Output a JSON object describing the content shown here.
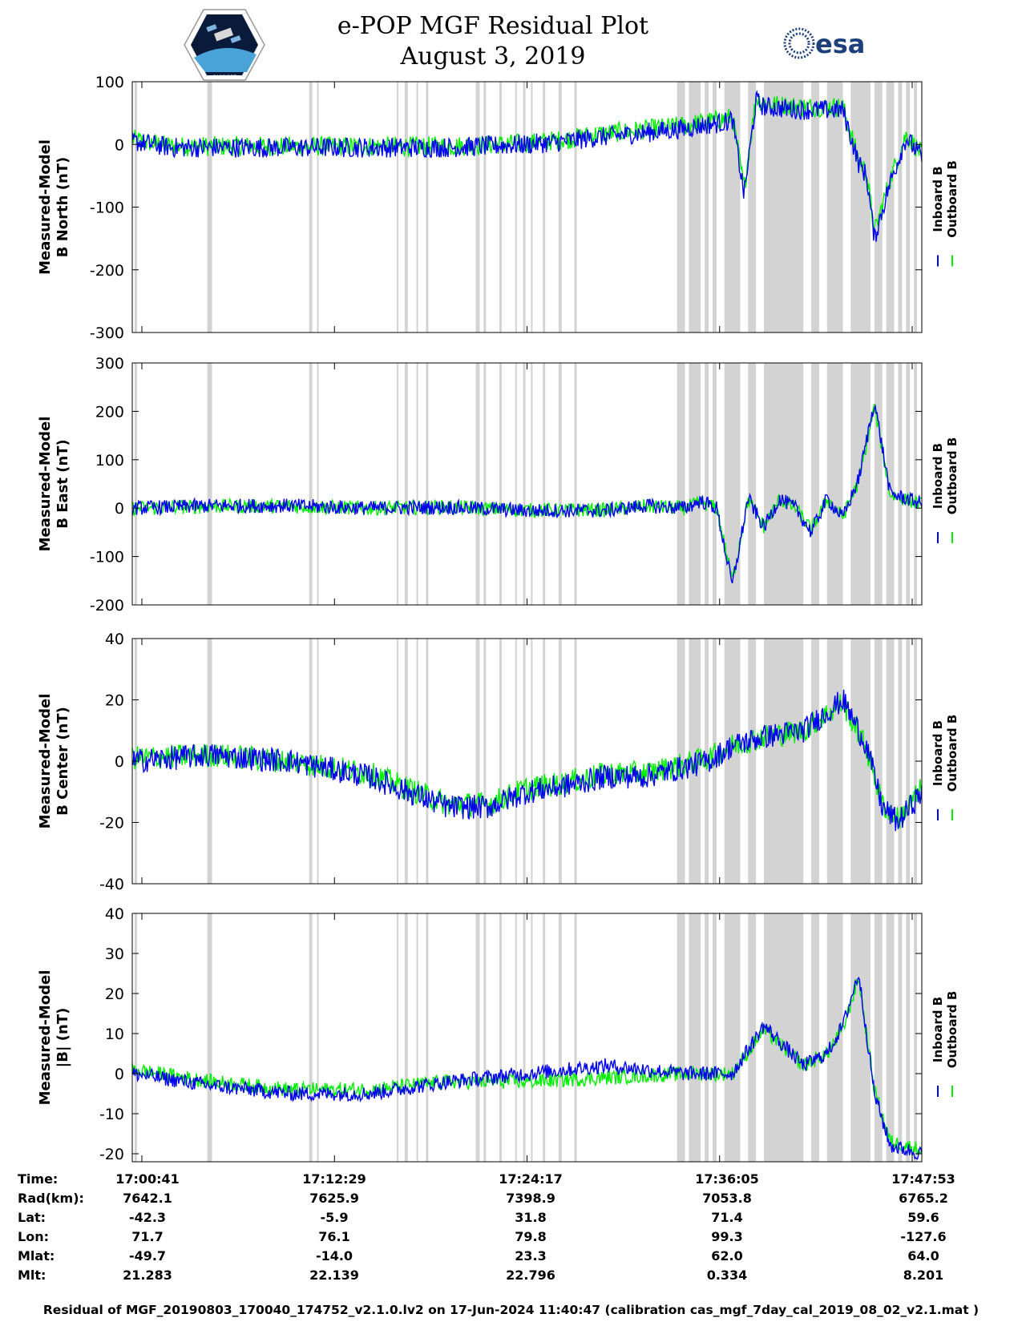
{
  "header": {
    "title_line1": "e-POP MGF Residual Plot",
    "title_line2": "August 3, 2019",
    "logo_left": "CASSIOPE",
    "logo_right": "esa"
  },
  "colors": {
    "inboard": "#0000ee",
    "outboard": "#00ee00",
    "gap": "#d3d3d3"
  },
  "chart_data": [
    {
      "type": "line",
      "ylabel": [
        "Measured-Model",
        "B North (nT)"
      ],
      "ylim": [
        -300,
        100
      ],
      "yticks": [
        100,
        0,
        -100,
        -200,
        -300
      ],
      "legend": [
        "Inboard B",
        "Outboard B"
      ],
      "series": [
        {
          "name": "Inboard B",
          "x": [
            0,
            0.05,
            0.1,
            0.2,
            0.3,
            0.4,
            0.5,
            0.55,
            0.58,
            0.62,
            0.66,
            0.7,
            0.72,
            0.75,
            0.76,
            0.775,
            0.79,
            0.8,
            0.85,
            0.9,
            0.92,
            0.93,
            0.94,
            0.96,
            0.98,
            1.0
          ],
          "values": [
            5,
            -5,
            -5,
            -5,
            -5,
            -5,
            0,
            5,
            10,
            15,
            20,
            25,
            30,
            35,
            40,
            -80,
            70,
            60,
            55,
            55,
            -30,
            -50,
            -150,
            -60,
            10,
            -20
          ]
        },
        {
          "name": "Outboard B",
          "x": [
            0,
            0.05,
            0.1,
            0.2,
            0.3,
            0.4,
            0.5,
            0.55,
            0.58,
            0.62,
            0.66,
            0.7,
            0.72,
            0.75,
            0.76,
            0.775,
            0.79,
            0.8,
            0.85,
            0.9,
            0.92,
            0.93,
            0.94,
            0.96,
            0.98,
            1.0
          ],
          "values": [
            8,
            -3,
            -3,
            -3,
            -3,
            -3,
            2,
            8,
            15,
            20,
            25,
            30,
            35,
            40,
            45,
            -70,
            75,
            65,
            60,
            60,
            -25,
            -45,
            -140,
            -55,
            15,
            -15
          ]
        }
      ]
    },
    {
      "type": "line",
      "ylabel": [
        "Measured-Model",
        "B East (nT)"
      ],
      "ylim": [
        -200,
        300
      ],
      "yticks": [
        300,
        200,
        100,
        0,
        -100,
        -200
      ],
      "legend": [
        "Inboard B",
        "Outboard B"
      ],
      "series": [
        {
          "name": "Inboard B",
          "x": [
            0,
            0.1,
            0.2,
            0.3,
            0.4,
            0.5,
            0.55,
            0.6,
            0.65,
            0.7,
            0.72,
            0.74,
            0.76,
            0.78,
            0.8,
            0.82,
            0.84,
            0.86,
            0.88,
            0.9,
            0.92,
            0.94,
            0.96,
            0.98,
            1.0
          ],
          "values": [
            0,
            5,
            5,
            0,
            2,
            -5,
            -5,
            -5,
            5,
            0,
            15,
            0,
            -160,
            20,
            -40,
            20,
            0,
            -50,
            20,
            -20,
            60,
            220,
            30,
            20,
            10
          ]
        },
        {
          "name": "Outboard B",
          "x": [
            0,
            0.1,
            0.2,
            0.3,
            0.4,
            0.5,
            0.55,
            0.6,
            0.65,
            0.7,
            0.72,
            0.74,
            0.76,
            0.78,
            0.8,
            0.82,
            0.84,
            0.86,
            0.88,
            0.9,
            0.92,
            0.94,
            0.96,
            0.98,
            1.0
          ],
          "values": [
            0,
            4,
            4,
            0,
            2,
            -4,
            -4,
            -4,
            4,
            0,
            12,
            0,
            -150,
            18,
            -38,
            18,
            0,
            -45,
            18,
            -18,
            55,
            210,
            28,
            18,
            8
          ]
        }
      ]
    },
    {
      "type": "line",
      "ylabel": [
        "Measured-Model",
        "B Center (nT)"
      ],
      "ylim": [
        -40,
        40
      ],
      "yticks": [
        40,
        20,
        0,
        -20,
        -40
      ],
      "legend": [
        "Inboard B",
        "Outboard B"
      ],
      "series": [
        {
          "name": "Inboard B",
          "x": [
            0,
            0.1,
            0.2,
            0.3,
            0.35,
            0.4,
            0.45,
            0.5,
            0.55,
            0.6,
            0.65,
            0.7,
            0.73,
            0.76,
            0.8,
            0.85,
            0.9,
            0.93,
            0.95,
            0.97,
            1.0
          ],
          "values": [
            0,
            2,
            0,
            -5,
            -10,
            -15,
            -15,
            -10,
            -8,
            -5,
            -5,
            -2,
            0,
            5,
            8,
            10,
            20,
            5,
            -15,
            -20,
            -10
          ]
        },
        {
          "name": "Outboard B",
          "x": [
            0,
            0.1,
            0.2,
            0.3,
            0.35,
            0.4,
            0.45,
            0.5,
            0.55,
            0.6,
            0.65,
            0.7,
            0.73,
            0.76,
            0.8,
            0.85,
            0.9,
            0.93,
            0.95,
            0.97,
            1.0
          ],
          "values": [
            1,
            2,
            0,
            -4,
            -9,
            -14,
            -14,
            -9,
            -7,
            -4,
            -4,
            -1,
            1,
            5,
            8,
            10,
            19,
            4,
            -14,
            -19,
            -9
          ]
        }
      ]
    },
    {
      "type": "line",
      "ylabel": [
        "Measured-Model",
        "|B| (nT)"
      ],
      "ylim": [
        -22,
        40
      ],
      "yticks": [
        40,
        30,
        20,
        10,
        0,
        -10,
        -20
      ],
      "legend": [
        "Inboard B",
        "Outboard B"
      ],
      "series": [
        {
          "name": "Inboard B",
          "x": [
            0,
            0.1,
            0.2,
            0.3,
            0.4,
            0.5,
            0.6,
            0.7,
            0.76,
            0.8,
            0.85,
            0.88,
            0.9,
            0.92,
            0.94,
            0.96,
            1.0
          ],
          "values": [
            0,
            -3,
            -5,
            -5,
            -2,
            0,
            2,
            0,
            0,
            12,
            2,
            5,
            12,
            25,
            -5,
            -18,
            -20
          ]
        },
        {
          "name": "Outboard B",
          "x": [
            0,
            0.1,
            0.2,
            0.3,
            0.4,
            0.5,
            0.6,
            0.7,
            0.76,
            0.8,
            0.85,
            0.88,
            0.9,
            0.92,
            0.94,
            0.96,
            1.0
          ],
          "values": [
            1,
            -2,
            -4,
            -4,
            -2,
            -2,
            -1,
            0,
            0,
            11,
            2,
            5,
            11,
            24,
            -4,
            -17,
            -19
          ]
        }
      ]
    }
  ],
  "x_axis": {
    "labels": [
      "17:00:41",
      "17:12:29",
      "17:24:17",
      "17:36:05",
      "17:47:53"
    ]
  },
  "info_table": {
    "rows": [
      {
        "label": "Time:",
        "values": [
          "17:00:41",
          "17:12:29",
          "17:24:17",
          "17:36:05",
          "17:47:53"
        ]
      },
      {
        "label": "Rad(km):",
        "values": [
          "7642.1",
          "7625.9",
          "7398.9",
          "7053.8",
          "6765.2"
        ]
      },
      {
        "label": "Lat:",
        "values": [
          "-42.3",
          "-5.9",
          "31.8",
          "71.4",
          "59.6"
        ]
      },
      {
        "label": "Lon:",
        "values": [
          "71.7",
          "76.1",
          "79.8",
          "99.3",
          "-127.6"
        ]
      },
      {
        "label": "Mlat:",
        "values": [
          "-49.7",
          "-14.0",
          "23.3",
          "62.0",
          "64.0"
        ]
      },
      {
        "label": "Mlt:",
        "values": [
          "21.283",
          "22.139",
          "22.796",
          "0.334",
          "8.201"
        ]
      }
    ]
  },
  "footer": "Residual of MGF_20190803_170040_174752_v2.1.0.lv2 on 17-Jun-2024 11:40:47 (calibration cas_mgf_7day_cal_2019_08_02_v2.1.mat )"
}
